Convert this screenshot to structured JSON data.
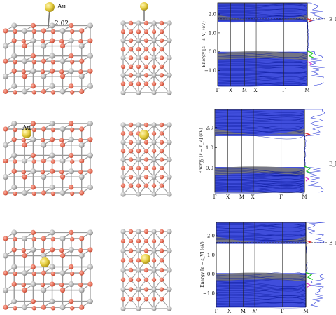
{
  "rows": [
    {
      "atom_label": "Au",
      "distance_label": "2.02",
      "band": {
        "ylabel": "Energy [ε − ε_V] (eV)",
        "yticks": [
          "2.0",
          "1.0",
          "0.0",
          "−1.0"
        ],
        "ytick_values": [
          2.0,
          1.0,
          0.0,
          -1.0
        ],
        "ylim": [
          -1.8,
          2.6
        ],
        "kpoints": [
          "Γ",
          "X",
          "M",
          "X'",
          "Γ",
          "M"
        ],
        "fermi_label": "E_F",
        "fermi_value": 1.75,
        "gap": [
          0.0,
          1.6
        ]
      }
    },
    {
      "atom_label": "Au",
      "distance_label": "",
      "band": {
        "ylabel": "Energy [ε − ε_V] (eV)",
        "yticks": [
          "2.0",
          "1.0",
          "0.0"
        ],
        "ytick_values": [
          2.0,
          1.0,
          0.0
        ],
        "ylim": [
          -1.2,
          2.9
        ],
        "kpoints": [
          "Γ",
          "X",
          "M",
          "X'",
          "Γ",
          "M"
        ],
        "fermi_label": "E_F",
        "fermi_value": 0.25,
        "gap": [
          0.05,
          1.6
        ]
      }
    },
    {
      "atom_label": "",
      "distance_label": "",
      "band": {
        "ylabel": "Energy [ε − ε_V] (eV)",
        "yticks": [
          "2.0",
          "1.0",
          "0.0",
          "−1.0"
        ],
        "ytick_values": [
          2.0,
          1.0,
          0.0,
          -1.0
        ],
        "ylim": [
          -1.7,
          2.7
        ],
        "kpoints": [
          "Γ",
          "X",
          "M",
          "X'",
          "Γ",
          "M"
        ],
        "fermi_label": "E_F",
        "fermi_value": 1.65,
        "gap": [
          0.05,
          1.6
        ]
      }
    }
  ],
  "colors": {
    "oxygen": "#e8705a",
    "metal": "#b9b9b9",
    "gold": "#e7cf43",
    "bands": "#1f2fd6",
    "shade": "#7a7a7a",
    "dos_green": "#22cc22",
    "dos_red": "#dd2222",
    "dos_magenta": "#dd33cc"
  }
}
